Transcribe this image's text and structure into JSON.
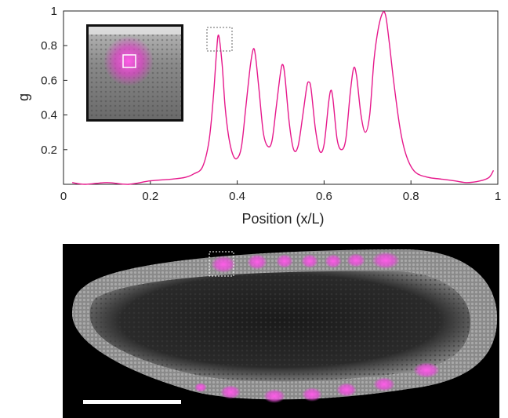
{
  "chart_data": {
    "type": "line",
    "xlabel": "Position (x/L)",
    "ylabel": "g",
    "xlim": [
      0,
      1
    ],
    "ylim": [
      0,
      1
    ],
    "x_ticks": [
      0,
      0.2,
      0.4,
      0.6,
      0.8,
      1
    ],
    "x_tick_labels": [
      "0",
      "0.2",
      "0.4",
      "0.6",
      "0.8",
      "1"
    ],
    "y_ticks": [
      0.2,
      0.4,
      0.6,
      0.8,
      1
    ],
    "y_tick_labels": [
      "0.2",
      "0.4",
      "0.6",
      "0.8",
      "1"
    ],
    "grid": false,
    "series": [
      {
        "color": "#e6198c",
        "x": [
          0.02,
          0.05,
          0.1,
          0.15,
          0.2,
          0.25,
          0.28,
          0.3,
          0.32,
          0.335,
          0.345,
          0.352,
          0.357,
          0.365,
          0.372,
          0.38,
          0.39,
          0.4,
          0.41,
          0.42,
          0.43,
          0.437,
          0.442,
          0.45,
          0.46,
          0.47,
          0.48,
          0.49,
          0.5,
          0.505,
          0.51,
          0.52,
          0.53,
          0.54,
          0.55,
          0.56,
          0.565,
          0.57,
          0.58,
          0.59,
          0.6,
          0.61,
          0.615,
          0.62,
          0.63,
          0.64,
          0.65,
          0.66,
          0.668,
          0.675,
          0.685,
          0.695,
          0.705,
          0.715,
          0.725,
          0.735,
          0.742,
          0.75,
          0.76,
          0.775,
          0.79,
          0.81,
          0.84,
          0.87,
          0.9,
          0.93,
          0.96,
          0.98,
          0.99
        ],
        "y": [
          0.01,
          0.0,
          0.01,
          0.0,
          0.02,
          0.03,
          0.04,
          0.06,
          0.1,
          0.25,
          0.5,
          0.75,
          0.86,
          0.7,
          0.45,
          0.28,
          0.17,
          0.15,
          0.22,
          0.45,
          0.68,
          0.78,
          0.74,
          0.55,
          0.3,
          0.22,
          0.25,
          0.45,
          0.65,
          0.69,
          0.62,
          0.35,
          0.2,
          0.22,
          0.38,
          0.56,
          0.59,
          0.55,
          0.32,
          0.19,
          0.23,
          0.46,
          0.54,
          0.5,
          0.26,
          0.2,
          0.26,
          0.52,
          0.67,
          0.62,
          0.4,
          0.3,
          0.4,
          0.72,
          0.9,
          0.99,
          0.97,
          0.82,
          0.6,
          0.32,
          0.16,
          0.07,
          0.04,
          0.03,
          0.02,
          0.01,
          0.02,
          0.04,
          0.08
        ]
      }
    ],
    "annotations": [
      "inset micrograph with white square marker",
      "dotted box marking first peak"
    ]
  },
  "scale_bar": {
    "color": "#ffffff"
  },
  "colors": {
    "signal": "#e6198c",
    "axis": "#222222",
    "micrograph_bg": "#000000"
  }
}
